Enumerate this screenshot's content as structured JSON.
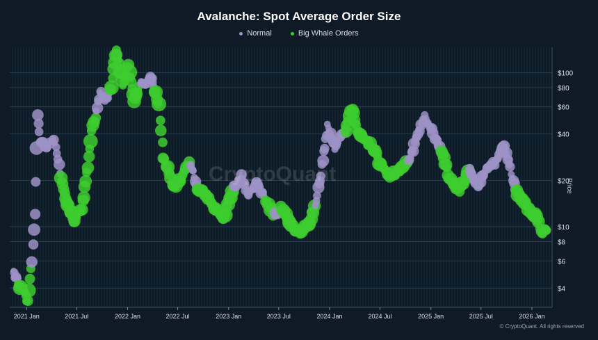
{
  "chart_data": {
    "type": "scatter",
    "title": "Avalanche: Spot Average Order Size",
    "ylabel": "Price",
    "yscale": "log",
    "ylim": [
      3.0,
      140
    ],
    "xlim": [
      "2020-11-01",
      "2026-03-15"
    ],
    "yticks": [
      4,
      6,
      8,
      10,
      20,
      40,
      60,
      80,
      100
    ],
    "ytick_labels": [
      "$4",
      "$6",
      "$8",
      "$10",
      "$20",
      "$40",
      "$60",
      "$80",
      "$100"
    ],
    "xticks": [
      "2021-01-01",
      "2021-07-01",
      "2022-01-01",
      "2022-07-01",
      "2023-01-01",
      "2023-07-01",
      "2024-01-01",
      "2024-07-01",
      "2025-01-01",
      "2025-07-01",
      "2026-01-01"
    ],
    "xtick_labels": [
      "2021 Jan",
      "2021 Jul",
      "2022 Jan",
      "2022 Jul",
      "2023 Jan",
      "2023 Jul",
      "2024 Jan",
      "2024 Jul",
      "2025 Jan",
      "2025 Jul",
      "2026 Jan"
    ],
    "grid": true,
    "legend_position": "top-center",
    "series": [
      {
        "name": "Normal",
        "color": "#9d92c6"
      },
      {
        "name": "Big Whale Orders",
        "color": "#3dcc2f"
      }
    ],
    "price_path": [
      {
        "x": "2020-11-15",
        "y": 5.2,
        "s": 0
      },
      {
        "x": "2020-12-01",
        "y": 4.3,
        "s": 1
      },
      {
        "x": "2020-12-20",
        "y": 3.9,
        "s": 1
      },
      {
        "x": "2021-01-05",
        "y": 3.3,
        "s": 1
      },
      {
        "x": "2021-01-20",
        "y": 6.0,
        "s": 0
      },
      {
        "x": "2021-02-01",
        "y": 12.0,
        "s": 0
      },
      {
        "x": "2021-02-09",
        "y": 55.0,
        "s": 0
      },
      {
        "x": "2021-02-20",
        "y": 35.0,
        "s": 0
      },
      {
        "x": "2021-03-15",
        "y": 33.0,
        "s": 0
      },
      {
        "x": "2021-04-10",
        "y": 36.0,
        "s": 0
      },
      {
        "x": "2021-04-25",
        "y": 28.0,
        "s": 0
      },
      {
        "x": "2021-05-05",
        "y": 20.0,
        "s": 1
      },
      {
        "x": "2021-05-25",
        "y": 15.0,
        "s": 1
      },
      {
        "x": "2021-06-20",
        "y": 11.0,
        "s": 1
      },
      {
        "x": "2021-07-20",
        "y": 13.0,
        "s": 1
      },
      {
        "x": "2021-08-10",
        "y": 24.0,
        "s": 1
      },
      {
        "x": "2021-08-25",
        "y": 42.0,
        "s": 1
      },
      {
        "x": "2021-09-10",
        "y": 55.0,
        "s": 0
      },
      {
        "x": "2021-09-23",
        "y": 75.0,
        "s": 0
      },
      {
        "x": "2021-10-10",
        "y": 66.0,
        "s": 0
      },
      {
        "x": "2021-11-01",
        "y": 75.0,
        "s": 1
      },
      {
        "x": "2021-11-21",
        "y": 140.0,
        "s": 1
      },
      {
        "x": "2021-12-15",
        "y": 85.0,
        "s": 1
      },
      {
        "x": "2022-01-05",
        "y": 110.0,
        "s": 1
      },
      {
        "x": "2022-01-25",
        "y": 65.0,
        "s": 1
      },
      {
        "x": "2022-02-15",
        "y": 85.0,
        "s": 0
      },
      {
        "x": "2022-03-01",
        "y": 82.0,
        "s": 0
      },
      {
        "x": "2022-03-28",
        "y": 95.0,
        "s": 0
      },
      {
        "x": "2022-04-10",
        "y": 78.0,
        "s": 1
      },
      {
        "x": "2022-04-25",
        "y": 60.0,
        "s": 1
      },
      {
        "x": "2022-05-10",
        "y": 28.0,
        "s": 1
      },
      {
        "x": "2022-05-25",
        "y": 24.0,
        "s": 1
      },
      {
        "x": "2022-06-15",
        "y": 18.0,
        "s": 1
      },
      {
        "x": "2022-07-15",
        "y": 21.0,
        "s": 1
      },
      {
        "x": "2022-08-15",
        "y": 26.0,
        "s": 0
      },
      {
        "x": "2022-09-10",
        "y": 18.0,
        "s": 1
      },
      {
        "x": "2022-10-15",
        "y": 16.0,
        "s": 1
      },
      {
        "x": "2022-11-10",
        "y": 13.0,
        "s": 1
      },
      {
        "x": "2022-12-15",
        "y": 11.5,
        "s": 1
      },
      {
        "x": "2023-01-20",
        "y": 18.0,
        "s": 0
      },
      {
        "x": "2023-02-15",
        "y": 21.0,
        "s": 0
      },
      {
        "x": "2023-03-10",
        "y": 16.0,
        "s": 0
      },
      {
        "x": "2023-04-15",
        "y": 19.0,
        "s": 0
      },
      {
        "x": "2023-05-15",
        "y": 15.0,
        "s": 1
      },
      {
        "x": "2023-06-15",
        "y": 12.0,
        "s": 0
      },
      {
        "x": "2023-07-10",
        "y": 13.0,
        "s": 1
      },
      {
        "x": "2023-08-20",
        "y": 10.0,
        "s": 1
      },
      {
        "x": "2023-09-20",
        "y": 9.2,
        "s": 1
      },
      {
        "x": "2023-10-20",
        "y": 10.5,
        "s": 1
      },
      {
        "x": "2023-11-10",
        "y": 14.0,
        "s": 0
      },
      {
        "x": "2023-12-01",
        "y": 22.0,
        "s": 0
      },
      {
        "x": "2023-12-25",
        "y": 45.0,
        "s": 0
      },
      {
        "x": "2024-01-20",
        "y": 33.0,
        "s": 0
      },
      {
        "x": "2024-02-10",
        "y": 38.0,
        "s": 0
      },
      {
        "x": "2024-03-01",
        "y": 43.0,
        "s": 1
      },
      {
        "x": "2024-03-20",
        "y": 60.0,
        "s": 1
      },
      {
        "x": "2024-04-10",
        "y": 42.0,
        "s": 1
      },
      {
        "x": "2024-05-10",
        "y": 37.0,
        "s": 1
      },
      {
        "x": "2024-06-10",
        "y": 31.0,
        "s": 1
      },
      {
        "x": "2024-07-05",
        "y": 25.0,
        "s": 1
      },
      {
        "x": "2024-08-05",
        "y": 21.0,
        "s": 1
      },
      {
        "x": "2024-09-05",
        "y": 23.0,
        "s": 1
      },
      {
        "x": "2024-10-15",
        "y": 27.0,
        "s": 0
      },
      {
        "x": "2024-11-15",
        "y": 40.0,
        "s": 0
      },
      {
        "x": "2024-12-10",
        "y": 52.0,
        "s": 0
      },
      {
        "x": "2025-01-05",
        "y": 42.0,
        "s": 0
      },
      {
        "x": "2025-02-10",
        "y": 30.0,
        "s": 1
      },
      {
        "x": "2025-03-10",
        "y": 20.0,
        "s": 1
      },
      {
        "x": "2025-04-10",
        "y": 17.0,
        "s": 1
      },
      {
        "x": "2025-05-20",
        "y": 24.0,
        "s": 0
      },
      {
        "x": "2025-06-20",
        "y": 18.0,
        "s": 0
      },
      {
        "x": "2025-07-20",
        "y": 24.0,
        "s": 0
      },
      {
        "x": "2025-08-25",
        "y": 26.0,
        "s": 0
      },
      {
        "x": "2025-09-20",
        "y": 34.0,
        "s": 0
      },
      {
        "x": "2025-10-15",
        "y": 24.0,
        "s": 0
      },
      {
        "x": "2025-11-05",
        "y": 17.0,
        "s": 1
      },
      {
        "x": "2025-12-15",
        "y": 13.0,
        "s": 1
      },
      {
        "x": "2026-01-15",
        "y": 12.0,
        "s": 1
      },
      {
        "x": "2026-02-05",
        "y": 9.0,
        "s": 1
      },
      {
        "x": "2026-02-25",
        "y": 9.5,
        "s": 1
      }
    ]
  },
  "watermark": "CryptoQuant",
  "copyright": "© CryptoQuant. All rights reserved"
}
